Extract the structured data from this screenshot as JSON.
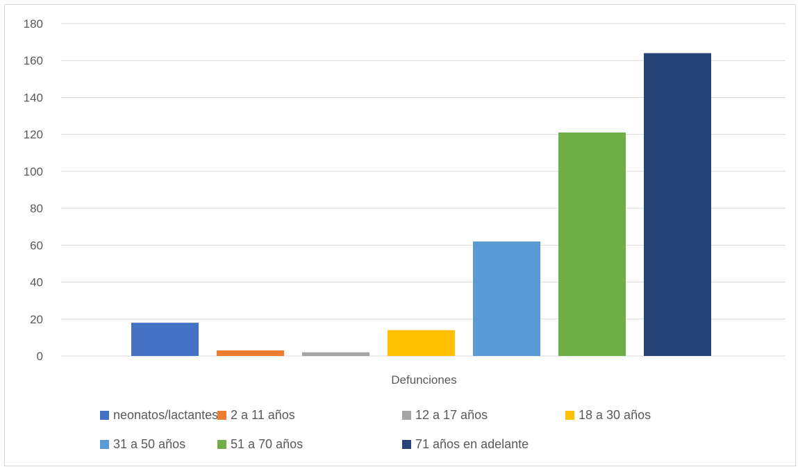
{
  "chart_data": {
    "type": "bar",
    "categories": [
      "Defunciones"
    ],
    "xlabel": "Defunciones",
    "ylabel": "",
    "title": "",
    "ylim": [
      0,
      180
    ],
    "yticks": [
      "0",
      "20",
      "40",
      "60",
      "80",
      "100",
      "120",
      "140",
      "160",
      "180"
    ],
    "grid": true,
    "legend_position": "bottom",
    "series": [
      {
        "name": "neonatos/lactantes",
        "values": [
          18
        ],
        "color": "#4472C4"
      },
      {
        "name": "2 a 11 años",
        "values": [
          3
        ],
        "color": "#ED7D31"
      },
      {
        "name": "12 a 17 años",
        "values": [
          2
        ],
        "color": "#A5A5A5"
      },
      {
        "name": "18 a 30 años",
        "values": [
          14
        ],
        "color": "#FFC000"
      },
      {
        "name": "31 a 50 años",
        "values": [
          62
        ],
        "color": "#5B9BD5"
      },
      {
        "name": "51 a 70 años",
        "values": [
          121
        ],
        "color": "#70AD47"
      },
      {
        "name": "71 años en adelante",
        "values": [
          164
        ],
        "color": "#264478"
      }
    ]
  }
}
